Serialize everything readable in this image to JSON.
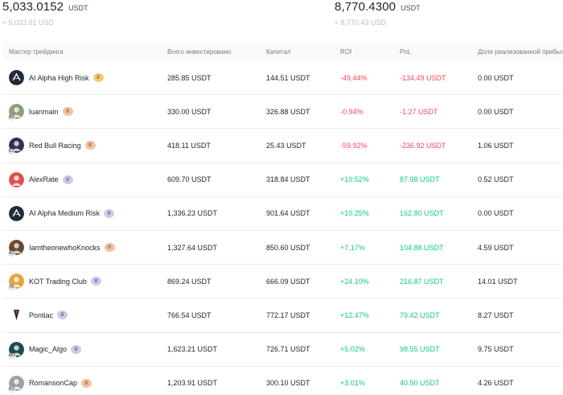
{
  "summary": {
    "left": {
      "value": "5,033.0152",
      "unit": "USDT",
      "approx": "≈ 5,033.01 USD"
    },
    "right": {
      "value": "8,770.4300",
      "unit": "USDT",
      "approx": "≈ 8,770.43 USD"
    }
  },
  "table": {
    "headers": {
      "trader": "Мастер трейдинга",
      "invested": "Всего инвестировано",
      "capital": "Капитал",
      "roi": "ROI",
      "pnl": "PnL",
      "realized_share": "Доля реализованной прибыли"
    },
    "rows": [
      {
        "name": "AI Alpha High Risk",
        "invested": "285.85 USDT",
        "capital": "144.51 USDT",
        "roi": "-49.44%",
        "pnl": "-134.49 USDT",
        "share": "0.00 USDT",
        "trend": "neg",
        "avatar_color": "#1f2a3a",
        "avatar_icon": "ai-logo-icon",
        "badge": "",
        "crown": "gold",
        "crown_icon": "crown-icon"
      },
      {
        "name": "luanmain",
        "invested": "330.00 USDT",
        "capital": "326.88 USDT",
        "roi": "-0.94%",
        "pnl": "-1.27 USDT",
        "share": "0.00 USDT",
        "trend": "neg",
        "avatar_color": "#8aa17a",
        "avatar_icon": "user-avatar-icon",
        "badge": "BR",
        "crown": "bronze",
        "crown_icon": "crown-icon"
      },
      {
        "name": "Red Bull Racing",
        "invested": "418.11 USDT",
        "capital": "25.43 USDT",
        "roi": "-59.92%",
        "pnl": "-236.92 USDT",
        "share": "1.06 USDT",
        "trend": "neg",
        "avatar_color": "#2b3350",
        "avatar_icon": "user-avatar-icon",
        "badge": "KZ",
        "crown": "bronze",
        "crown_icon": "crown-icon"
      },
      {
        "name": "AlexRate",
        "invested": "609.70 USDT",
        "capital": "318.84 USDT",
        "roi": "+10.52%",
        "pnl": "87.98 USDT",
        "share": "0.52 USDT",
        "trend": "pos",
        "avatar_color": "#d9534f",
        "avatar_icon": "user-avatar-icon",
        "badge": "",
        "crown": "silver",
        "crown_icon": "crown-icon"
      },
      {
        "name": "AI Alpha Medium Risk",
        "invested": "1,336.23 USDT",
        "capital": "901.64 USDT",
        "roi": "+10.25%",
        "pnl": "162.80 USDT",
        "share": "0.00 USDT",
        "trend": "pos",
        "avatar_color": "#1f2a3a",
        "avatar_icon": "ai-logo-icon",
        "badge": "",
        "crown": "silver",
        "crown_icon": "crown-icon"
      },
      {
        "name": "IamtheonewhoKnocks",
        "invested": "1,327.64 USDT",
        "capital": "850.60 USDT",
        "roi": "+7.17%",
        "pnl": "104.88 USDT",
        "share": "4.59 USDT",
        "trend": "pos",
        "avatar_color": "#6b4a34",
        "avatar_icon": "user-avatar-icon",
        "badge": "AU",
        "crown": "bronze",
        "crown_icon": "crown-icon"
      },
      {
        "name": "KOT Trading Club",
        "invested": "869.24 USDT",
        "capital": "666.09 USDT",
        "roi": "+24.10%",
        "pnl": "216.87 USDT",
        "share": "14.01 USDT",
        "trend": "pos",
        "avatar_color": "#e3a63b",
        "avatar_icon": "user-avatar-icon",
        "badge": "TR",
        "crown": "silver",
        "crown_icon": "crown-icon"
      },
      {
        "name": "Pontiac",
        "invested": "766.54 USDT",
        "capital": "772.17 USDT",
        "roi": "+12.47%",
        "pnl": "79.42 USDT",
        "share": "8.27 USDT",
        "trend": "pos",
        "avatar_color": "#ffffff",
        "avatar_icon": "arrowhead-logo-icon",
        "badge": "",
        "crown": "silver",
        "crown_icon": "crown-icon"
      },
      {
        "name": "Magic_Algo",
        "invested": "1,623.21 USDT",
        "capital": "726.71 USDT",
        "roi": "+5.02%",
        "pnl": "98.55 USDT",
        "share": "9.75 USDT",
        "trend": "pos",
        "avatar_color": "#1b4b4f",
        "avatar_icon": "user-avatar-icon",
        "badge": "MO",
        "crown": "silver",
        "crown_icon": "crown-icon"
      },
      {
        "name": "RomansonCap",
        "invested": "1,203.91 USDT",
        "capital": "300.10 USDT",
        "roi": "+3.01%",
        "pnl": "40.50 USDT",
        "share": "4.26 USDT",
        "trend": "pos",
        "avatar_color": "#9aa0a6",
        "avatar_icon": "user-avatar-icon",
        "badge": "RU",
        "crown": "bronze",
        "crown_icon": "crown-icon"
      }
    ]
  }
}
